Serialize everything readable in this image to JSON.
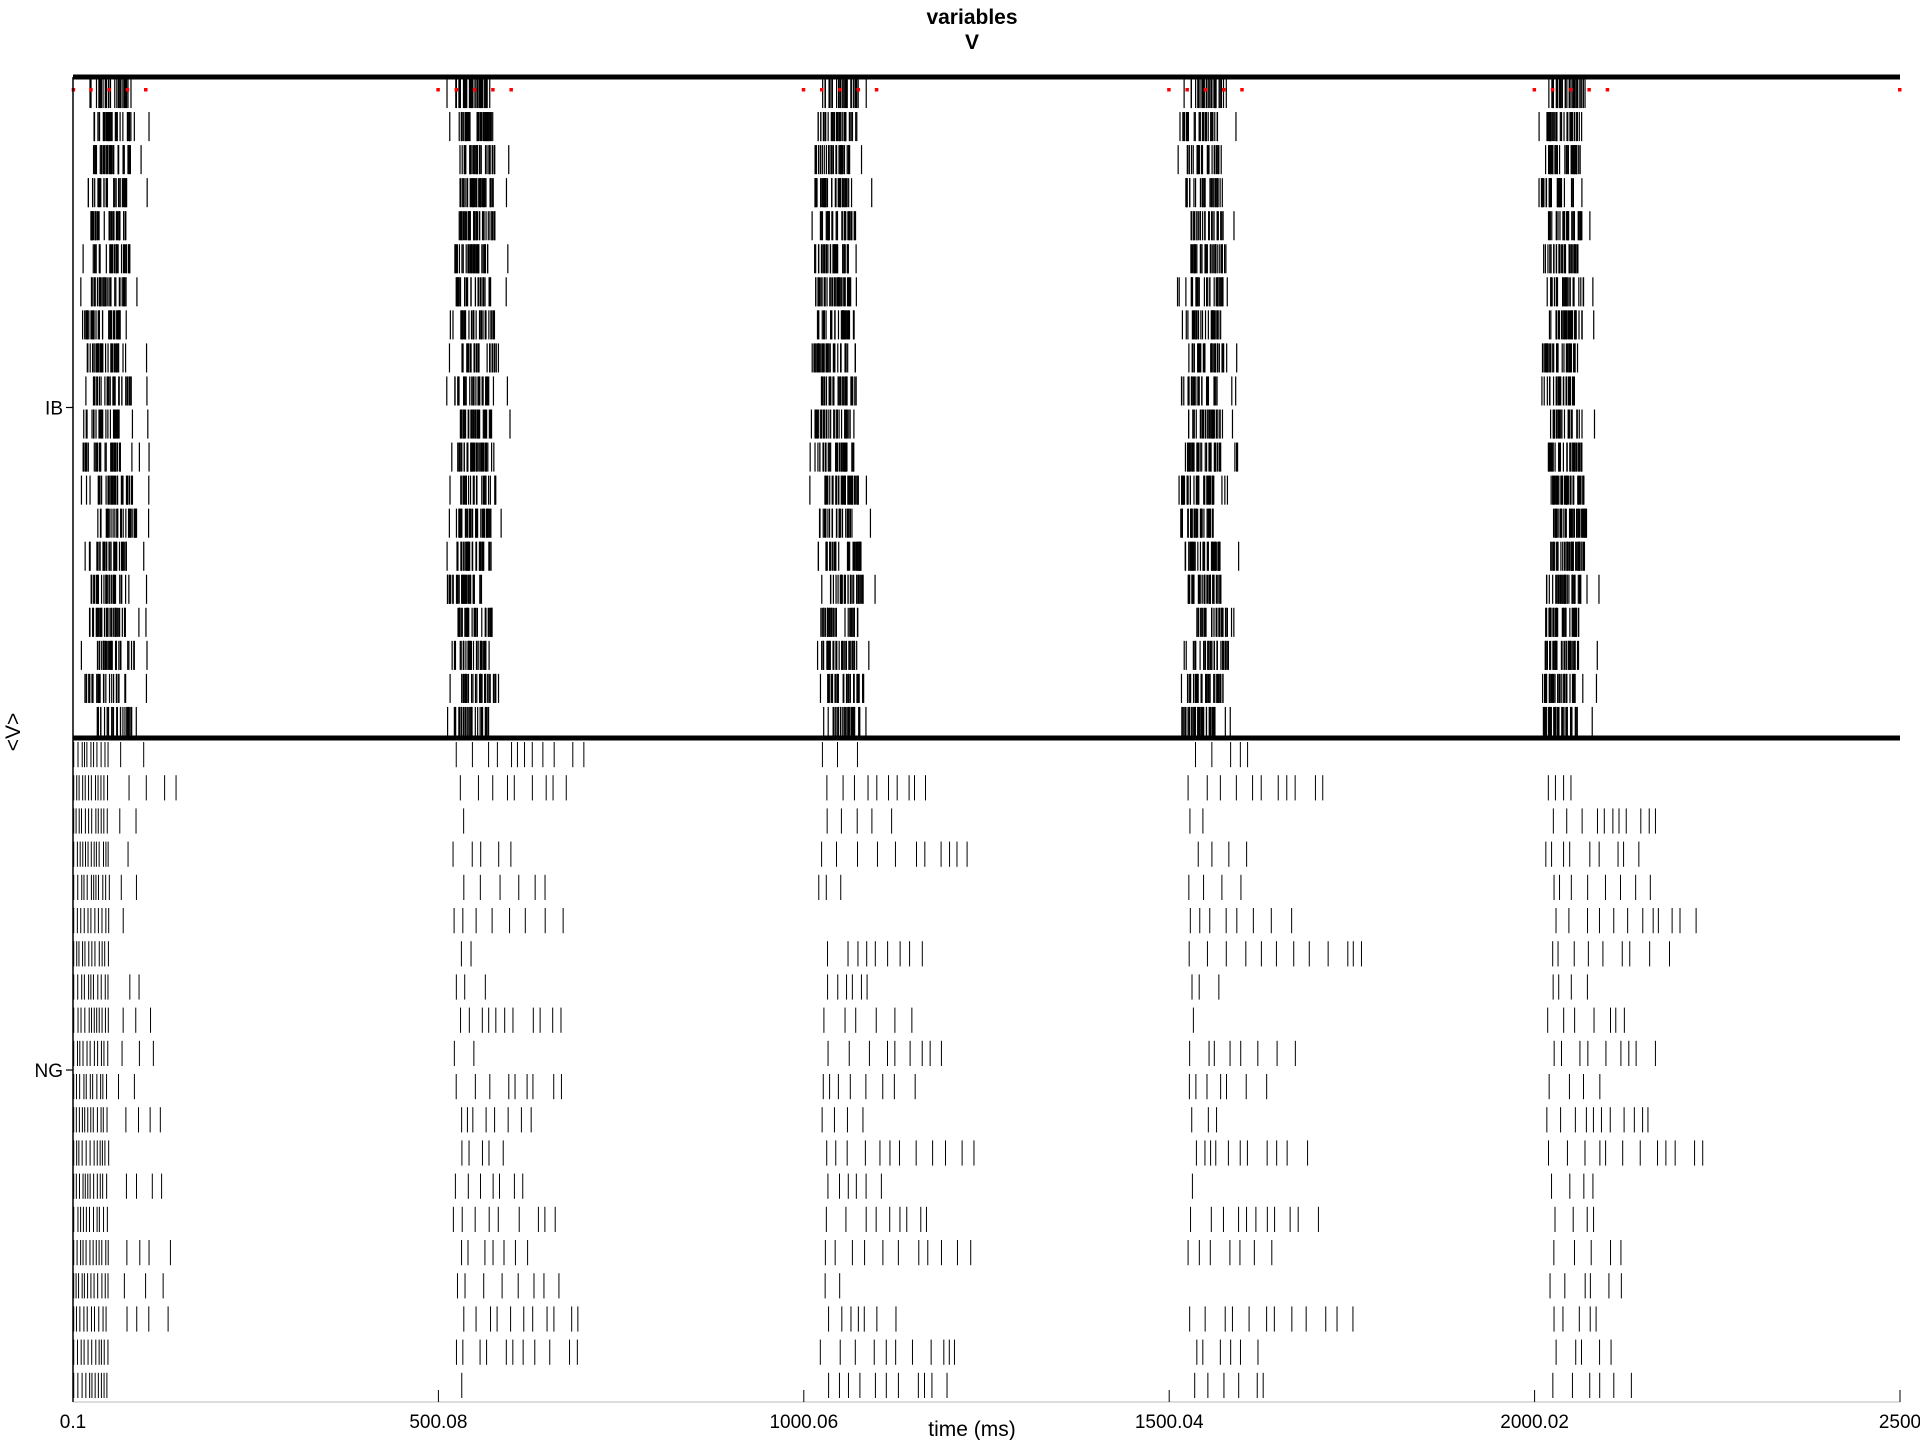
{
  "chart_data": {
    "type": "raster",
    "title": [
      "variables",
      "V"
    ],
    "xlabel": "time (ms)",
    "ylabel": "<V>",
    "xlim": [
      0.1,
      2500
    ],
    "x_ticks": [
      0.1,
      500.08,
      1000.06,
      1500.04,
      2000.02,
      2500
    ],
    "x_tick_labels": [
      "0.1",
      "500.08",
      "1000.06",
      "1500.04",
      "2000.02",
      "2500"
    ],
    "populations": [
      {
        "name": "IB",
        "rows": 20,
        "style": "dense spike bursts",
        "burst_times_ms": [
          {
            "start": 8,
            "end": 105
          },
          {
            "start": 510,
            "end": 600
          },
          {
            "start": 1008,
            "end": 1098
          },
          {
            "start": 1510,
            "end": 1598
          },
          {
            "start": 2005,
            "end": 2093
          }
        ]
      },
      {
        "name": "NG",
        "rows": 20,
        "style": "sparse spike trains",
        "initial_dense_window_ms": [
          0.1,
          50
        ],
        "burst_times_ms": [
          {
            "start": 520,
            "end": 825
          },
          {
            "start": 1020,
            "end": 1330
          },
          {
            "start": 1525,
            "end": 1830
          },
          {
            "start": 2015,
            "end": 2330
          }
        ]
      }
    ],
    "markers": {
      "color": "#ff0000",
      "row": "IB top",
      "times_ms": [
        1,
        25,
        50,
        75,
        100,
        500,
        525,
        550,
        575,
        600,
        1000,
        1025,
        1050,
        1075,
        1100,
        1500,
        1525,
        1550,
        1575,
        1600,
        2000,
        2025,
        2050,
        2075,
        2100,
        2500
      ]
    },
    "separator_lines": [
      "top border",
      "IB/NG boundary"
    ],
    "grid": false,
    "legend": "none"
  },
  "colors": {
    "spikes": "#000000",
    "markers": "#ff0000",
    "axes": "#000000",
    "background": "#ffffff"
  }
}
